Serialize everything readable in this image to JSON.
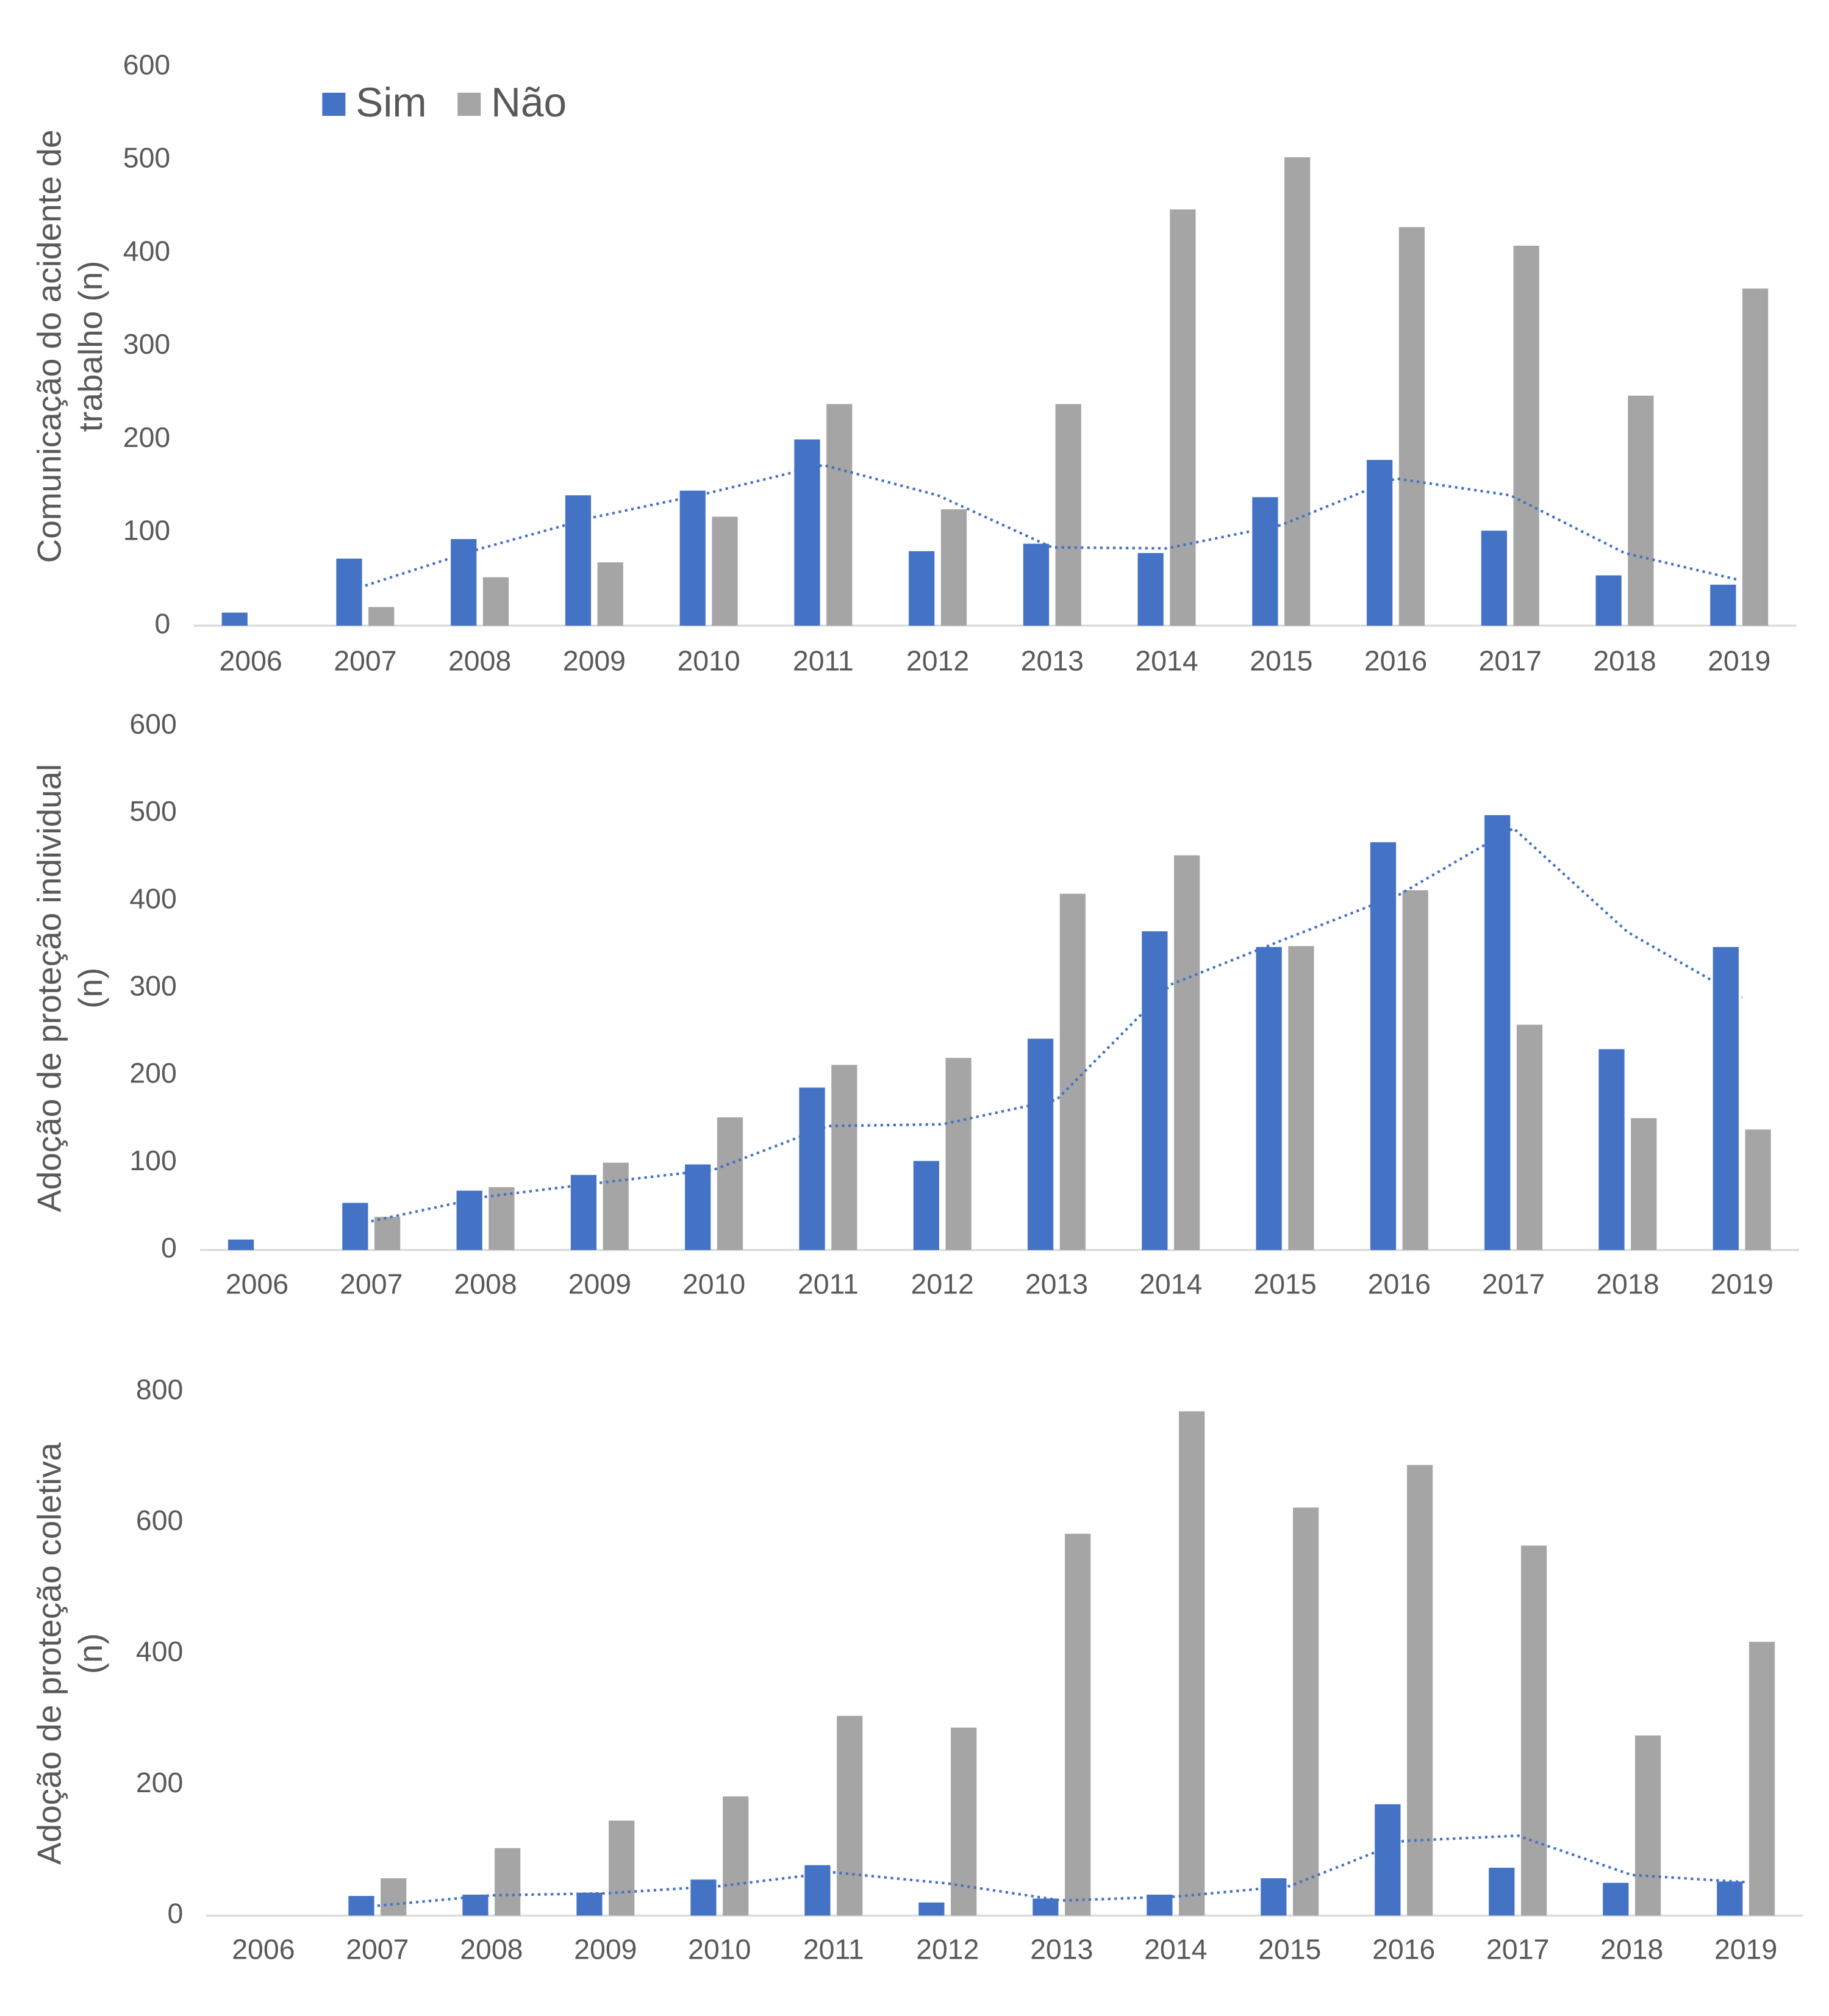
{
  "chart_data": [
    {
      "type": "bar",
      "y_label": [
        "Comunicação do acidente de",
        "trabalho (n)"
      ],
      "categories": [
        "2006",
        "2007",
        "2008",
        "2009",
        "2010",
        "2011",
        "2012",
        "2013",
        "2014",
        "2015",
        "2016",
        "2017",
        "2018",
        "2019"
      ],
      "series": [
        {
          "name": "Sim",
          "color": "#4472c4",
          "values": [
            14,
            72,
            93,
            140,
            145,
            200,
            80,
            88,
            78,
            138,
            178,
            102,
            54,
            44
          ]
        },
        {
          "name": "Não",
          "color": "#a5a5a5",
          "values": [
            0,
            20,
            52,
            68,
            117,
            238,
            125,
            238,
            447,
            503,
            428,
            408,
            247,
            362
          ]
        }
      ],
      "trendline": {
        "color": "#4472c4",
        "style": "dotted",
        "values": [
          null,
          43,
          82.5,
          116.5,
          142.5,
          172.5,
          140,
          84,
          83,
          108,
          158,
          140,
          78,
          49
        ]
      },
      "ylim": [
        0,
        600
      ],
      "yticks": [
        0,
        100,
        200,
        300,
        400,
        500,
        600
      ],
      "grid": false,
      "legend": "top-left"
    },
    {
      "type": "bar",
      "y_label": [
        "Adoção de proteção individual",
        "(n)"
      ],
      "categories": [
        "2006",
        "2007",
        "2008",
        "2009",
        "2010",
        "2011",
        "2012",
        "2013",
        "2014",
        "2015",
        "2016",
        "2017",
        "2018",
        "2019"
      ],
      "series": [
        {
          "name": "Sim",
          "color": "#4472c4",
          "values": [
            12,
            54,
            68,
            86,
            98,
            186,
            102,
            242,
            365,
            347,
            467,
            498,
            230,
            347
          ]
        },
        {
          "name": "Não",
          "color": "#a5a5a5",
          "values": [
            0,
            38,
            72,
            100,
            152,
            212,
            220,
            408,
            452,
            348,
            412,
            258,
            151,
            138
          ]
        }
      ],
      "trendline": {
        "color": "#4472c4",
        "style": "dotted",
        "values": [
          null,
          33,
          61,
          77,
          92,
          142,
          144,
          172,
          304,
          356,
          407,
          483,
          364,
          289
        ]
      },
      "ylim": [
        0,
        600
      ],
      "yticks": [
        0,
        100,
        200,
        300,
        400,
        500,
        600
      ],
      "grid": false
    },
    {
      "type": "bar",
      "y_label": [
        "Adoção de proteção coletiva",
        "(n)"
      ],
      "categories": [
        "2006",
        "2007",
        "2008",
        "2009",
        "2010",
        "2011",
        "2012",
        "2013",
        "2014",
        "2015",
        "2016",
        "2017",
        "2018",
        "2019"
      ],
      "series": [
        {
          "name": "Sim",
          "color": "#4472c4",
          "values": [
            0,
            30,
            32,
            35,
            55,
            77,
            20,
            26,
            32,
            57,
            170,
            73,
            50,
            52
          ]
        },
        {
          "name": "Não",
          "color": "#a5a5a5",
          "values": [
            0,
            57,
            103,
            145,
            182,
            305,
            287,
            583,
            770,
            623,
            688,
            565,
            275,
            418
          ]
        }
      ],
      "trendline": {
        "color": "#4472c4",
        "style": "dotted",
        "values": [
          null,
          15,
          31,
          34,
          45,
          66,
          49,
          23,
          29,
          45,
          114,
          122,
          62,
          51
        ]
      },
      "ylim": [
        0,
        800
      ],
      "yticks": [
        0,
        200,
        400,
        600,
        800
      ],
      "grid": false
    }
  ]
}
